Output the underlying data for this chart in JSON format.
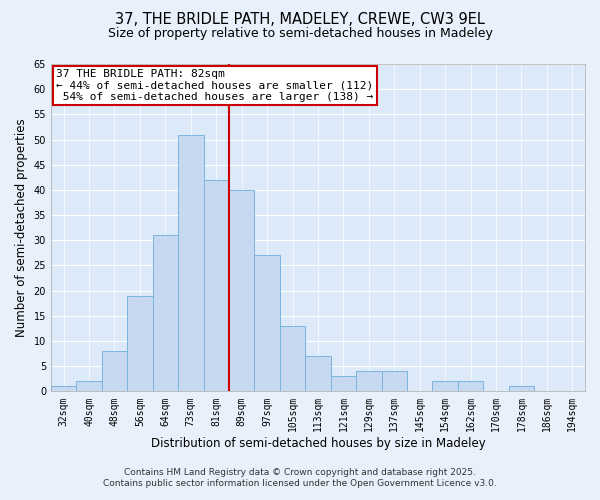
{
  "title": "37, THE BRIDLE PATH, MADELEY, CREWE, CW3 9EL",
  "subtitle": "Size of property relative to semi-detached houses in Madeley",
  "xlabel": "Distribution of semi-detached houses by size in Madeley",
  "ylabel": "Number of semi-detached properties",
  "bar_labels": [
    "32sqm",
    "40sqm",
    "48sqm",
    "56sqm",
    "64sqm",
    "73sqm",
    "81sqm",
    "89sqm",
    "97sqm",
    "105sqm",
    "113sqm",
    "121sqm",
    "129sqm",
    "137sqm",
    "145sqm",
    "154sqm",
    "162sqm",
    "170sqm",
    "178sqm",
    "186sqm",
    "194sqm"
  ],
  "bar_values": [
    1,
    2,
    8,
    19,
    31,
    51,
    42,
    40,
    27,
    13,
    7,
    3,
    4,
    4,
    0,
    2,
    2,
    0,
    1,
    0,
    0
  ],
  "bar_color": "#c6d9f1",
  "bar_edge_color": "#7ab5de",
  "highlight_bar_index": 6,
  "highlight_color": "#cc0000",
  "annotation_text": "37 THE BRIDLE PATH: 82sqm\n← 44% of semi-detached houses are smaller (112)\n 54% of semi-detached houses are larger (138) →",
  "annotation_box_color": "#ffffff",
  "annotation_box_edge_color": "#cc0000",
  "ylim": [
    0,
    65
  ],
  "yticks": [
    0,
    5,
    10,
    15,
    20,
    25,
    30,
    35,
    40,
    45,
    50,
    55,
    60,
    65
  ],
  "bg_color": "#e8f0fb",
  "plot_bg_color": "#dce9f8",
  "footer_line1": "Contains HM Land Registry data © Crown copyright and database right 2025.",
  "footer_line2": "Contains public sector information licensed under the Open Government Licence v3.0.",
  "title_fontsize": 10.5,
  "subtitle_fontsize": 9,
  "axis_label_fontsize": 8.5,
  "tick_fontsize": 7,
  "annotation_fontsize": 8,
  "footer_fontsize": 6.5
}
